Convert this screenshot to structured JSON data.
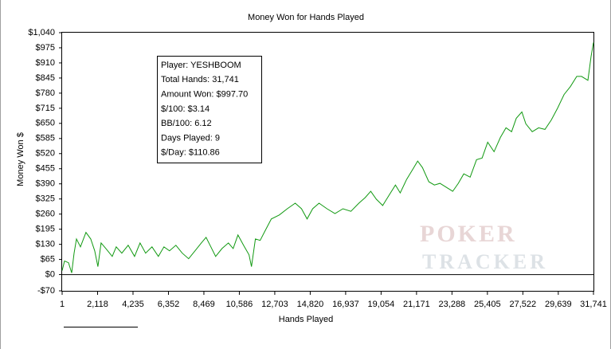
{
  "chart_data": {
    "type": "line",
    "title": "Money Won for Hands Played",
    "xlabel": "Hands Played",
    "ylabel": "Money Won $",
    "xlim": [
      1,
      31741
    ],
    "ylim": [
      -70,
      1040
    ],
    "xticks": [
      1,
      {
        "value": 2118,
        "label": "2,118"
      },
      {
        "value": 4235,
        "label": "4,235"
      },
      {
        "value": 6352,
        "label": "6,352"
      },
      {
        "value": 8469,
        "label": "8,469"
      },
      {
        "value": 10586,
        "label": "10,586"
      },
      {
        "value": 12703,
        "label": "12,703"
      },
      {
        "value": 14820,
        "label": "14,820"
      },
      {
        "value": 16937,
        "label": "16,937"
      },
      {
        "value": 19054,
        "label": "19,054"
      },
      {
        "value": 21171,
        "label": "21,171"
      },
      {
        "value": 23288,
        "label": "23,288"
      },
      {
        "value": 25405,
        "label": "25,405"
      },
      {
        "value": 27522,
        "label": "27,522"
      },
      {
        "value": 29639,
        "label": "29,639"
      },
      {
        "value": 31741,
        "label": "31,741"
      }
    ],
    "yticks": [
      {
        "value": -70,
        "label": "-$70"
      },
      {
        "value": 0,
        "label": "$0"
      },
      {
        "value": 65,
        "label": "$65"
      },
      {
        "value": 130,
        "label": "$130"
      },
      {
        "value": 195,
        "label": "$195"
      },
      {
        "value": 260,
        "label": "$260"
      },
      {
        "value": 325,
        "label": "$325"
      },
      {
        "value": 390,
        "label": "$390"
      },
      {
        "value": 455,
        "label": "$455"
      },
      {
        "value": 520,
        "label": "$520"
      },
      {
        "value": 585,
        "label": "$585"
      },
      {
        "value": 650,
        "label": "$650"
      },
      {
        "value": 715,
        "label": "$715"
      },
      {
        "value": 780,
        "label": "$780"
      },
      {
        "value": 845,
        "label": "$845"
      },
      {
        "value": 910,
        "label": "$910"
      },
      {
        "value": 975,
        "label": "$975"
      },
      {
        "value": 1040,
        "label": "$1,040"
      }
    ],
    "zero_line": true,
    "series": [
      {
        "color": "#119911",
        "x": [
          1,
          144,
          381,
          571,
          714,
          856,
          1094,
          1426,
          1711,
          1949,
          2139,
          2329,
          2614,
          2994,
          3232,
          3565,
          3945,
          4325,
          4657,
          4990,
          5370,
          5750,
          6083,
          6416,
          6796,
          7176,
          7556,
          7936,
          8316,
          8601,
          8886,
          9171,
          9552,
          9932,
          10217,
          10502,
          10835,
          11167,
          11310,
          11547,
          11832,
          12118,
          12498,
          12973,
          13448,
          13923,
          14303,
          14636,
          14968,
          15349,
          15824,
          16299,
          16774,
          17249,
          17725,
          18105,
          18437,
          18770,
          19150,
          19530,
          19910,
          20195,
          20575,
          20955,
          21240,
          21525,
          21906,
          22238,
          22571,
          22951,
          23331,
          23664,
          23996,
          24376,
          24756,
          25089,
          25422,
          25802,
          26182,
          26514,
          26847,
          27132,
          27465,
          27702,
          28082,
          28462,
          28842,
          29222,
          29602,
          29983,
          30363,
          30743,
          31028,
          31408,
          31598,
          31741
        ],
        "values": [
          17,
          58,
          51,
          7,
          92,
          153,
          119,
          181,
          153,
          102,
          34,
          136,
          112,
          78,
          119,
          92,
          126,
          78,
          136,
          92,
          119,
          78,
          119,
          102,
          126,
          92,
          68,
          102,
          136,
          160,
          119,
          78,
          112,
          136,
          112,
          170,
          126,
          85,
          34,
          153,
          147,
          187,
          239,
          256,
          283,
          307,
          283,
          239,
          283,
          307,
          283,
          262,
          283,
          272,
          307,
          331,
          358,
          324,
          297,
          341,
          385,
          351,
          409,
          453,
          488,
          460,
          399,
          385,
          392,
          375,
          358,
          392,
          433,
          419,
          494,
          501,
          569,
          528,
          590,
          631,
          614,
          672,
          699,
          648,
          614,
          631,
          624,
          665,
          716,
          774,
          808,
          852,
          852,
          835,
          938,
          998
        ]
      }
    ],
    "info_box": [
      "Player: YESHBOOM",
      "Total Hands: 31,741",
      "Amount Won: $997.70",
      "$/100: $3.14",
      "BB/100: 6.12",
      "Days Played: 9",
      "$/Day: $110.86"
    ],
    "watermark": [
      "POKER",
      "TRACKER"
    ]
  }
}
